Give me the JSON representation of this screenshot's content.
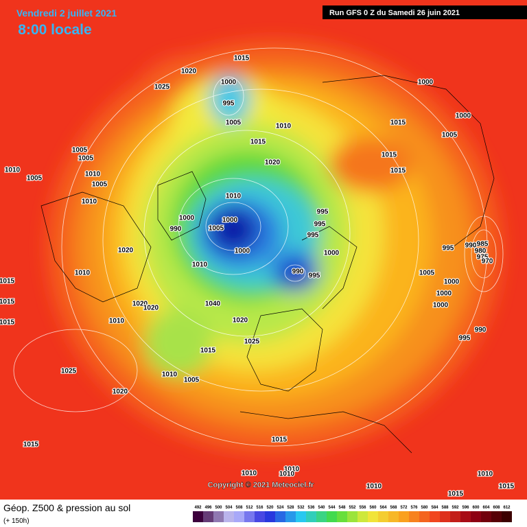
{
  "header": {
    "date": "Vendredi 2 juillet 2021",
    "time": "8:00 locale",
    "run": "Run GFS 0 Z du Samedi 26 juin 2021"
  },
  "footer": {
    "title": "Géop. Z500 & pression au sol",
    "lead": "(+ 150h)",
    "copyright": "Copyright © 2021 Meteociel.fr"
  },
  "legend": {
    "levels": [
      492,
      496,
      500,
      504,
      508,
      512,
      516,
      520,
      524,
      528,
      532,
      536,
      540,
      544,
      548,
      552,
      556,
      560,
      564,
      568,
      572,
      576,
      580,
      584,
      588,
      592,
      596,
      600,
      604,
      608,
      612
    ]
  },
  "isobar_labels": [
    "1015",
    "1020",
    "1025",
    "1000",
    "995",
    "1005",
    "1010",
    "1015",
    "1020",
    "1005",
    "1010",
    "1005",
    "1010",
    "1005",
    "1005",
    "1010",
    "1010",
    "1000",
    "1005",
    "1000",
    "990",
    "995",
    "995",
    "995",
    "1000",
    "1020",
    "1010",
    "1010",
    "990",
    "995",
    "1000",
    "1000",
    "1015",
    "1000",
    "1005",
    "1015",
    "1015",
    "995",
    "990",
    "985",
    "980",
    "975",
    "970",
    "1005",
    "1000",
    "1000",
    "1000",
    "990",
    "995",
    "1015",
    "1015",
    "1015",
    "1020",
    "1020",
    "1010",
    "1040",
    "1020",
    "1025",
    "1015",
    "1010",
    "1005",
    "1025",
    "1020",
    "1015",
    "1015",
    "1010",
    "1010",
    "1010",
    "1010",
    "1010",
    "1015",
    "1015"
  ]
}
